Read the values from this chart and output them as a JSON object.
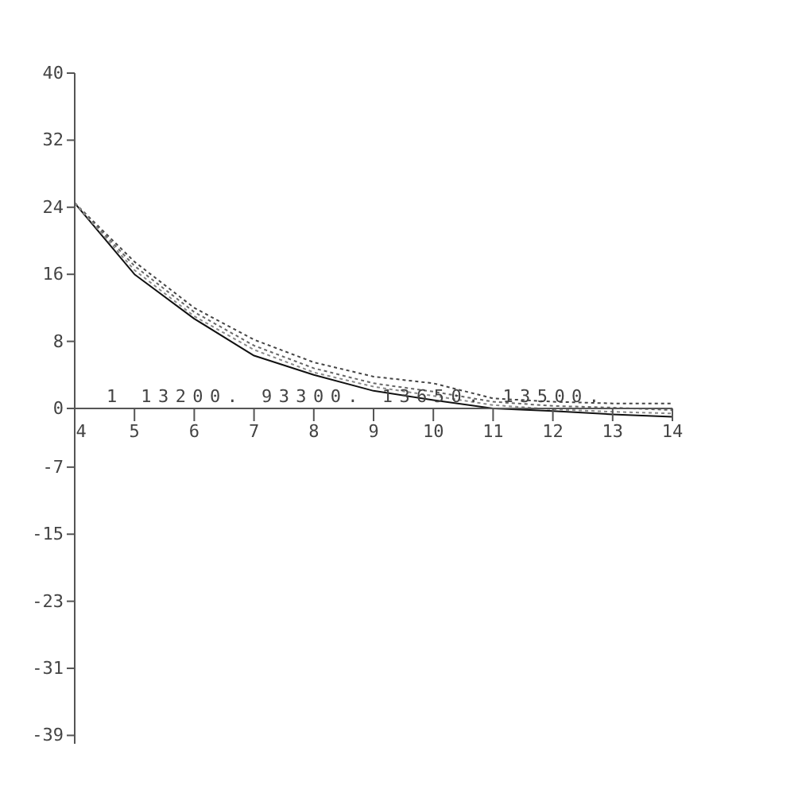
{
  "chart_data": {
    "type": "line",
    "x": [
      4,
      5,
      6,
      7,
      8,
      9,
      10,
      11,
      12,
      13,
      14
    ],
    "xlim": [
      4,
      14
    ],
    "xticks": [
      4,
      5,
      6,
      7,
      8,
      9,
      10,
      11,
      12,
      13,
      14
    ],
    "ylim": [
      -40,
      40
    ],
    "yticks": [
      -39,
      -31,
      -23,
      -15,
      -7,
      0,
      8,
      16,
      24,
      32,
      40
    ],
    "annotations": [
      "1 13200. 93300. 13650. 13500."
    ],
    "series": [
      {
        "color": "#111111",
        "line_style": "solid",
        "values": [
          24.5,
          16,
          10.7,
          6.3,
          4,
          2.1,
          1,
          0,
          -0.3,
          -0.7,
          -1
        ]
      },
      {
        "color": "#444444",
        "line_style": "dotted",
        "values": [
          24.5,
          17.5,
          12,
          8.2,
          5.5,
          3.8,
          3,
          1.2,
          0.8,
          0.6,
          0.6
        ]
      },
      {
        "color": "#666666",
        "line_style": "dotted",
        "values": [
          24.5,
          17,
          11.5,
          7.5,
          4.8,
          3,
          2,
          0.8,
          0.3,
          0.1,
          -0.2
        ]
      },
      {
        "color": "#888888",
        "line_style": "dotted",
        "values": [
          24.5,
          16.5,
          11,
          7,
          4.3,
          2.6,
          1.5,
          0.4,
          -0.1,
          -0.4,
          -0.6
        ]
      }
    ]
  }
}
